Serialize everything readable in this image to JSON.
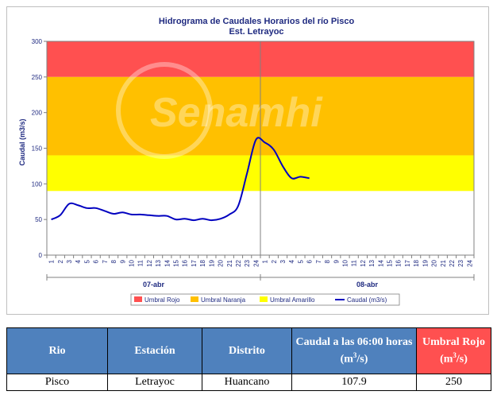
{
  "chart_data": {
    "type": "line",
    "title": "Hidrograma de Caudales Horarios del río Pisco",
    "subtitle": "Est. Letrayoc",
    "watermark": "Senamhi",
    "ylabel": "Caudal  (m3/s)",
    "ylim": [
      0,
      300
    ],
    "yticks": [
      0,
      50,
      100,
      150,
      200,
      250,
      300
    ],
    "x_ticks": [
      "1",
      "2",
      "3",
      "4",
      "5",
      "6",
      "7",
      "8",
      "9",
      "10",
      "11",
      "12",
      "13",
      "14",
      "15",
      "16",
      "17",
      "18",
      "19",
      "20",
      "21",
      "22",
      "23",
      "24",
      "1",
      "2",
      "3",
      "4",
      "5",
      "6",
      "7",
      "8",
      "9",
      "10",
      "11",
      "12",
      "13",
      "14",
      "15",
      "16",
      "17",
      "18",
      "19",
      "20",
      "21",
      "22",
      "23",
      "24"
    ],
    "day_labels": [
      "07-abr",
      "08-abr"
    ],
    "thresholds": [
      {
        "name": "Umbral Rojo",
        "from": 250,
        "to": 300,
        "color": "#ff5050"
      },
      {
        "name": "Umbral Naranja",
        "from": 140,
        "to": 250,
        "color": "#ffc000"
      },
      {
        "name": "Umbral Amarillo",
        "from": 90,
        "to": 140,
        "color": "#ffff00"
      }
    ],
    "series": [
      {
        "name": "Caudal (m3/s)",
        "color": "#0000c0",
        "values": [
          50,
          56,
          72,
          70,
          66,
          66,
          62,
          58,
          60,
          57,
          57,
          56,
          55,
          55,
          50,
          51,
          49,
          51,
          49,
          51,
          57,
          69,
          115,
          162,
          158,
          148,
          125,
          108,
          110,
          107.9
        ]
      }
    ],
    "grid": false,
    "legend_position": "bottom"
  },
  "table": {
    "headers": [
      "Rio",
      "Estación",
      "Distrito",
      "Caudal a las 06:00 horas",
      "Umbral Rojo"
    ],
    "unit_base": "(m",
    "unit_exp": "3",
    "unit_tail": "/s)",
    "row": [
      "Pisco",
      "Letrayoc",
      "Huancano",
      "107.9",
      "250"
    ]
  }
}
